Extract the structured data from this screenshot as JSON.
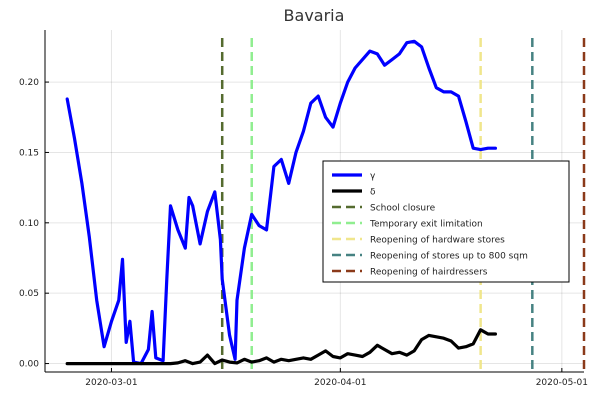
{
  "chart_data": {
    "type": "line",
    "title": "Bavaria",
    "xlabel": "",
    "ylabel": "",
    "x_type": "date",
    "xlim": [
      "2020-02-21",
      "2020-05-04"
    ],
    "ylim": [
      -0.006,
      0.237
    ],
    "xticks": [
      "2020-03-01",
      "2020-04-01",
      "2020-05-01"
    ],
    "yticks": [
      0.0,
      0.05,
      0.1,
      0.15,
      0.2
    ],
    "ytick_labels": [
      "0.00",
      "0.05",
      "0.10",
      "0.15",
      "0.20"
    ],
    "grid": true,
    "legend_position": "center-right",
    "series": [
      {
        "name": "γ",
        "color": "#0000ff",
        "points": [
          [
            "2020-02-24",
            0.188
          ],
          [
            "2020-02-25",
            0.16
          ],
          [
            "2020-02-26",
            0.128
          ],
          [
            "2020-02-27",
            0.09
          ],
          [
            "2020-02-28",
            0.045
          ],
          [
            "2020-02-29",
            0.012
          ],
          [
            "2020-03-01",
            0.03
          ],
          [
            "2020-03-02",
            0.045
          ],
          [
            "2020-03-02T12",
            0.074
          ],
          [
            "2020-03-03",
            0.015
          ],
          [
            "2020-03-03T12",
            0.03
          ],
          [
            "2020-03-04",
            0.001
          ],
          [
            "2020-03-05",
            0.0
          ],
          [
            "2020-03-06",
            0.01
          ],
          [
            "2020-03-06T12",
            0.037
          ],
          [
            "2020-03-07",
            0.004
          ],
          [
            "2020-03-08",
            0.002
          ],
          [
            "2020-03-08T12",
            0.06
          ],
          [
            "2020-03-09",
            0.112
          ],
          [
            "2020-03-10",
            0.095
          ],
          [
            "2020-03-11",
            0.082
          ],
          [
            "2020-03-11T12",
            0.118
          ],
          [
            "2020-03-12",
            0.112
          ],
          [
            "2020-03-13",
            0.085
          ],
          [
            "2020-03-14",
            0.108
          ],
          [
            "2020-03-15",
            0.122
          ],
          [
            "2020-03-15T18",
            0.088
          ],
          [
            "2020-03-16",
            0.06
          ],
          [
            "2020-03-17",
            0.02
          ],
          [
            "2020-03-17T18",
            0.003
          ],
          [
            "2020-03-18",
            0.045
          ],
          [
            "2020-03-19",
            0.082
          ],
          [
            "2020-03-20",
            0.106
          ],
          [
            "2020-03-21",
            0.098
          ],
          [
            "2020-03-22",
            0.095
          ],
          [
            "2020-03-23",
            0.14
          ],
          [
            "2020-03-24",
            0.145
          ],
          [
            "2020-03-25",
            0.128
          ],
          [
            "2020-03-26",
            0.15
          ],
          [
            "2020-03-27",
            0.165
          ],
          [
            "2020-03-28",
            0.185
          ],
          [
            "2020-03-29",
            0.19
          ],
          [
            "2020-03-30",
            0.175
          ],
          [
            "2020-03-31",
            0.168
          ],
          [
            "2020-04-01",
            0.185
          ],
          [
            "2020-04-02",
            0.2
          ],
          [
            "2020-04-03",
            0.21
          ],
          [
            "2020-04-05",
            0.222
          ],
          [
            "2020-04-06",
            0.22
          ],
          [
            "2020-04-07",
            0.212
          ],
          [
            "2020-04-08",
            0.216
          ],
          [
            "2020-04-09",
            0.22
          ],
          [
            "2020-04-10",
            0.228
          ],
          [
            "2020-04-11",
            0.229
          ],
          [
            "2020-04-12",
            0.225
          ],
          [
            "2020-04-13",
            0.21
          ],
          [
            "2020-04-14",
            0.196
          ],
          [
            "2020-04-15",
            0.193
          ],
          [
            "2020-04-16",
            0.193
          ],
          [
            "2020-04-17",
            0.19
          ],
          [
            "2020-04-18",
            0.172
          ],
          [
            "2020-04-19",
            0.153
          ],
          [
            "2020-04-20",
            0.152
          ],
          [
            "2020-04-21",
            0.153
          ],
          [
            "2020-04-22",
            0.153
          ]
        ]
      },
      {
        "name": "δ",
        "color": "#000000",
        "points": [
          [
            "2020-02-24",
            0.0
          ],
          [
            "2020-02-26",
            0.0
          ],
          [
            "2020-02-28",
            0.0
          ],
          [
            "2020-03-01",
            0.0
          ],
          [
            "2020-03-03",
            0.0
          ],
          [
            "2020-03-05",
            0.0
          ],
          [
            "2020-03-07",
            0.0
          ],
          [
            "2020-03-09",
            0.0
          ],
          [
            "2020-03-10",
            0.0005
          ],
          [
            "2020-03-11",
            0.002
          ],
          [
            "2020-03-12",
            0.0
          ],
          [
            "2020-03-13",
            0.001
          ],
          [
            "2020-03-14",
            0.006
          ],
          [
            "2020-03-15",
            0.0
          ],
          [
            "2020-03-16",
            0.0025
          ],
          [
            "2020-03-17",
            0.001
          ],
          [
            "2020-03-18",
            0.0005
          ],
          [
            "2020-03-19",
            0.003
          ],
          [
            "2020-03-20",
            0.001
          ],
          [
            "2020-03-21",
            0.002
          ],
          [
            "2020-03-22",
            0.004
          ],
          [
            "2020-03-23",
            0.001
          ],
          [
            "2020-03-24",
            0.003
          ],
          [
            "2020-03-25",
            0.002
          ],
          [
            "2020-03-26",
            0.003
          ],
          [
            "2020-03-27",
            0.004
          ],
          [
            "2020-03-28",
            0.003
          ],
          [
            "2020-03-29",
            0.006
          ],
          [
            "2020-03-30",
            0.009
          ],
          [
            "2020-03-31",
            0.005
          ],
          [
            "2020-04-01",
            0.004
          ],
          [
            "2020-04-02",
            0.007
          ],
          [
            "2020-04-03",
            0.006
          ],
          [
            "2020-04-04",
            0.005
          ],
          [
            "2020-04-05",
            0.008
          ],
          [
            "2020-04-06",
            0.013
          ],
          [
            "2020-04-07",
            0.01
          ],
          [
            "2020-04-08",
            0.007
          ],
          [
            "2020-04-09",
            0.008
          ],
          [
            "2020-04-10",
            0.006
          ],
          [
            "2020-04-11",
            0.009
          ],
          [
            "2020-04-12",
            0.017
          ],
          [
            "2020-04-13",
            0.02
          ],
          [
            "2020-04-14",
            0.019
          ],
          [
            "2020-04-15",
            0.018
          ],
          [
            "2020-04-16",
            0.016
          ],
          [
            "2020-04-17",
            0.011
          ],
          [
            "2020-04-18",
            0.012
          ],
          [
            "2020-04-19",
            0.014
          ],
          [
            "2020-04-20",
            0.024
          ],
          [
            "2020-04-21",
            0.021
          ],
          [
            "2020-04-22",
            0.021
          ]
        ]
      }
    ],
    "vlines": [
      {
        "name": "School closure",
        "date": "2020-03-16",
        "color": "#556b2f"
      },
      {
        "name": "Temporary exit limitation",
        "date": "2020-03-20",
        "color": "#90ee90"
      },
      {
        "name": "Reopening of hardware stores",
        "date": "2020-04-20",
        "color": "#f0e68c"
      },
      {
        "name": "Reopening of stores up to 800 sqm",
        "date": "2020-04-27",
        "color": "#468282"
      },
      {
        "name": "Reopening of hairdressers",
        "date": "2020-05-04",
        "color": "#8b3a1a"
      }
    ]
  }
}
